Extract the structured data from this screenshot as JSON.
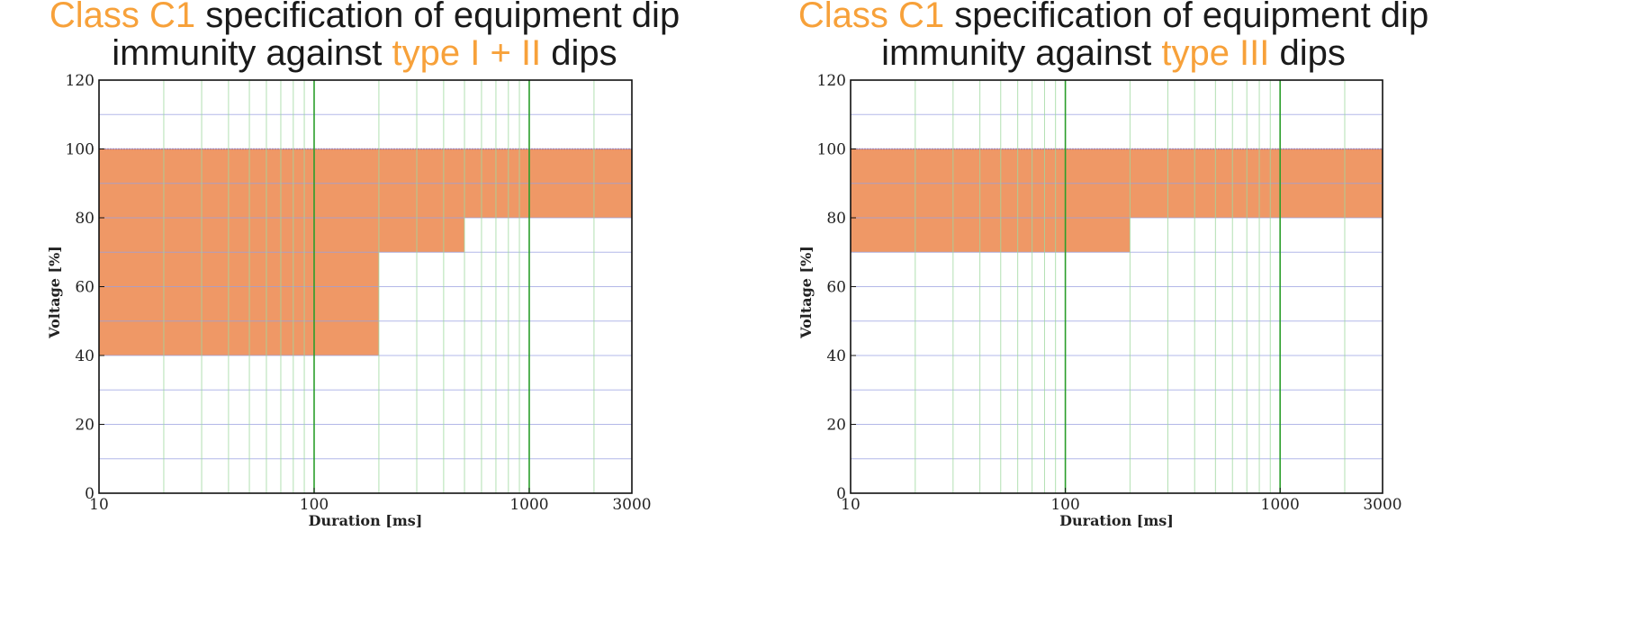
{
  "colors": {
    "fill": "#ef9866",
    "title_highlight": "#f7a13a",
    "major_vgrid": "#2a9e2a",
    "minor_vgrid": "#9fd89f",
    "hgrid": "#9aa0e0"
  },
  "chart_data": [
    {
      "type": "area",
      "title_parts": [
        {
          "text": "Class C1",
          "highlight": true
        },
        {
          "text": " specification of equipment dip",
          "highlight": false
        },
        {
          "text": "immunity against ",
          "highlight": false,
          "newline": true
        },
        {
          "text": "type I + II",
          "highlight": true
        },
        {
          "text": " dips",
          "highlight": false
        }
      ],
      "xlabel": "Duration [ms]",
      "ylabel": "Voltage [%]",
      "x_scale": "log",
      "xlim": [
        10,
        3000
      ],
      "ylim": [
        0,
        120
      ],
      "xticks": [
        10,
        100,
        1000,
        3000
      ],
      "xtick_labels": [
        "10",
        "100",
        "1000",
        "3000"
      ],
      "yticks": [
        0,
        20,
        40,
        60,
        80,
        100,
        120
      ],
      "ytick_labels": [
        "0",
        "20",
        "40",
        "60",
        "80",
        "100",
        "120"
      ],
      "grid": true,
      "series": [
        {
          "step_x": [
            10,
            200,
            200,
            500,
            500,
            3000
          ],
          "lower": [
            40,
            40,
            70,
            70,
            80,
            80
          ],
          "upper": 100
        }
      ]
    },
    {
      "type": "area",
      "title_parts": [
        {
          "text": "Class C1",
          "highlight": true
        },
        {
          "text": " specification of equipment dip",
          "highlight": false
        },
        {
          "text": "immunity against ",
          "highlight": false,
          "newline": true
        },
        {
          "text": "type III",
          "highlight": true
        },
        {
          "text": " dips",
          "highlight": false
        }
      ],
      "xlabel": "Duration [ms]",
      "ylabel": "Voltage [%]",
      "x_scale": "log",
      "xlim": [
        10,
        3000
      ],
      "ylim": [
        0,
        120
      ],
      "xticks": [
        10,
        100,
        1000,
        3000
      ],
      "xtick_labels": [
        "10",
        "100",
        "1000",
        "3000"
      ],
      "yticks": [
        0,
        20,
        40,
        60,
        80,
        100,
        120
      ],
      "ytick_labels": [
        "0",
        "20",
        "40",
        "60",
        "80",
        "100",
        "120"
      ],
      "grid": true,
      "series": [
        {
          "step_x": [
            10,
            200,
            200,
            3000
          ],
          "lower": [
            70,
            70,
            80,
            80
          ],
          "upper": 100
        }
      ]
    }
  ]
}
